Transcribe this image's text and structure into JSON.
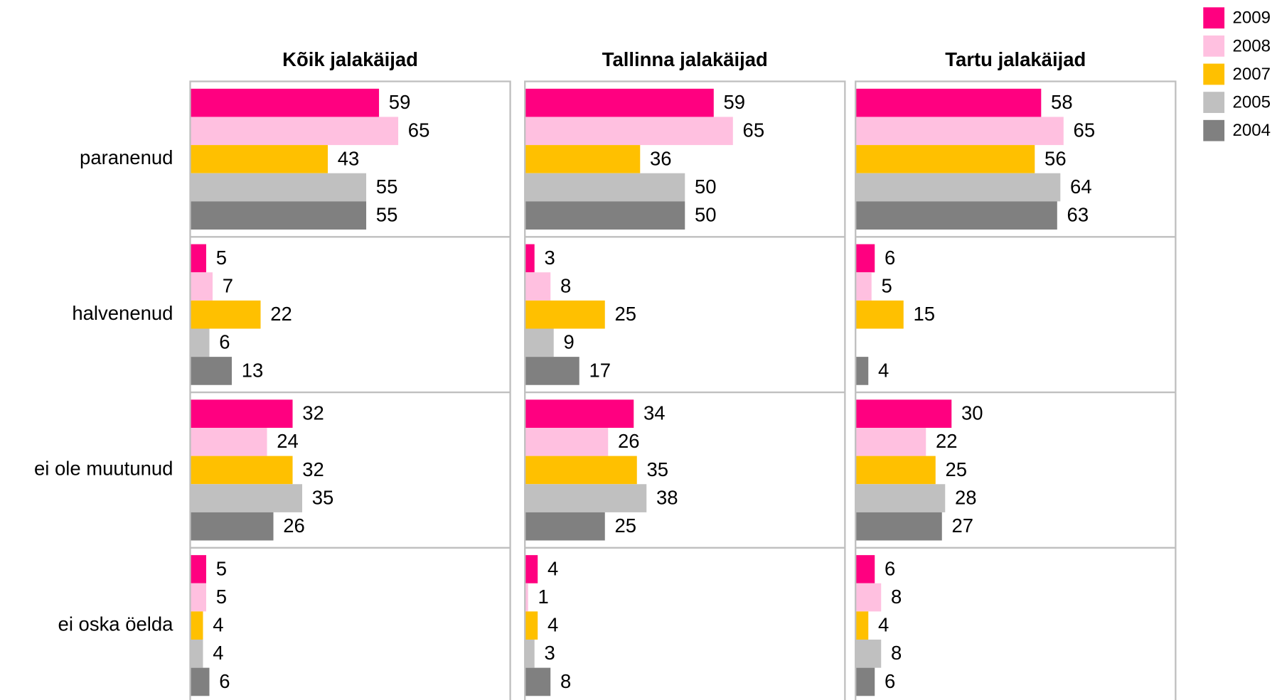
{
  "chart_data": {
    "type": "bar",
    "orientation": "horizontal",
    "categories": [
      "paranenud",
      "halvenenud",
      "ei ole muutunud",
      "ei oska öelda"
    ],
    "series": [
      {
        "name": "2009",
        "color": "#ff0080"
      },
      {
        "name": "2008",
        "color": "#ffc0e0"
      },
      {
        "name": "2007",
        "color": "#ffc000"
      },
      {
        "name": "2005",
        "color": "#c0c0c0"
      },
      {
        "name": "2004",
        "color": "#808080"
      }
    ],
    "xlim": [
      0,
      100
    ],
    "panels": [
      {
        "title": "Kõik jalakäijad",
        "values": [
          [
            59,
            5,
            32,
            5
          ],
          [
            65,
            7,
            24,
            5
          ],
          [
            43,
            22,
            32,
            4
          ],
          [
            55,
            6,
            35,
            4
          ],
          [
            55,
            13,
            26,
            6
          ]
        ]
      },
      {
        "title": "Tallinna jalakäijad",
        "values": [
          [
            59,
            3,
            34,
            4
          ],
          [
            65,
            8,
            26,
            1
          ],
          [
            36,
            25,
            35,
            4
          ],
          [
            50,
            9,
            38,
            3
          ],
          [
            50,
            17,
            25,
            8
          ]
        ]
      },
      {
        "title": "Tartu jalakäijad",
        "values": [
          [
            58,
            6,
            30,
            6
          ],
          [
            65,
            5,
            22,
            8
          ],
          [
            56,
            15,
            25,
            4
          ],
          [
            64,
            null,
            28,
            8
          ],
          [
            63,
            4,
            27,
            6
          ]
        ]
      }
    ]
  }
}
